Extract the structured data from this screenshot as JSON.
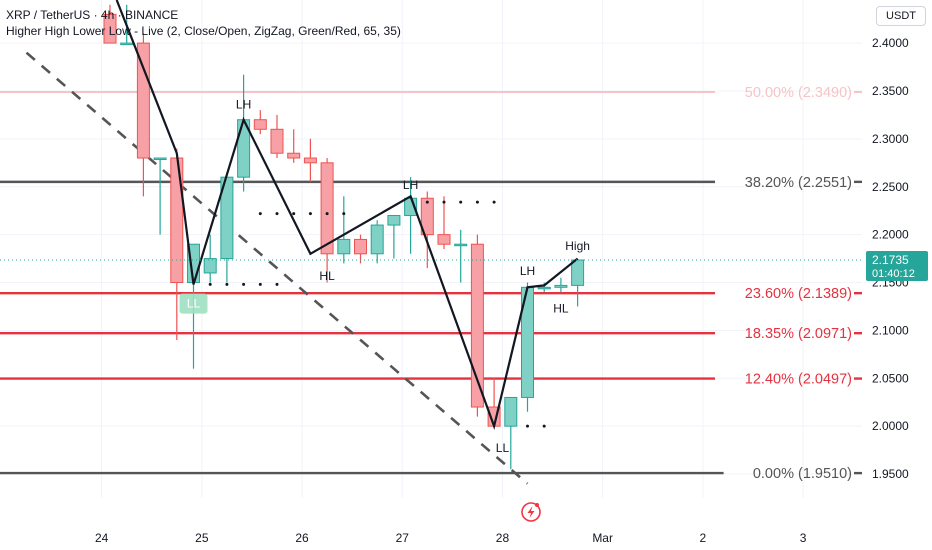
{
  "header": {
    "symbol_line": "XRP / TetherUS · 4h · BINANCE",
    "indicator_line": "Higher High Lower Low - Live (2, Close/Open, ZigZag, Green/Red, 65, 35)"
  },
  "currency": "USDT",
  "price_badge": {
    "price": "2.1735",
    "countdown": "01:40:12"
  },
  "colors": {
    "up": "#26a69a",
    "down": "#ef5350",
    "up_fill": "#7fd1c6",
    "down_fill": "#f7a1a6",
    "fib_red": "#e5323f",
    "fib_gray": "#555555",
    "fib_faded": "#f8c3c6"
  },
  "chart_data": {
    "type": "candlestick",
    "ylim": [
      1.925,
      2.445
    ],
    "y_ticks": [
      "2.4000",
      "2.3500",
      "2.3000",
      "2.2500",
      "2.2000",
      "2.1500",
      "2.1000",
      "2.0500",
      "2.0000",
      "1.9500"
    ],
    "y_tick_values": [
      2.4,
      2.35,
      2.3,
      2.25,
      2.2,
      2.15,
      2.1,
      2.05,
      2.0,
      1.95
    ],
    "x_labels": [
      "24",
      "25",
      "26",
      "27",
      "28",
      "Mar",
      "2",
      "3"
    ],
    "x_label_index": [
      -0.5,
      5.5,
      11.5,
      17.5,
      23.5,
      29.5,
      35.5,
      41.5
    ],
    "candles": [
      {
        "o": 2.43,
        "h": 2.44,
        "l": 2.4,
        "c": 2.4
      },
      {
        "o": 2.4,
        "h": 2.44,
        "l": 2.4,
        "c": 2.4
      },
      {
        "o": 2.4,
        "h": 2.41,
        "l": 2.24,
        "c": 2.28
      },
      {
        "o": 2.28,
        "h": 2.28,
        "l": 2.2,
        "c": 2.28
      },
      {
        "o": 2.28,
        "h": 2.29,
        "l": 2.09,
        "c": 2.15
      },
      {
        "o": 2.15,
        "h": 2.19,
        "l": 2.06,
        "c": 2.19
      },
      {
        "o": 2.16,
        "h": 2.2,
        "l": 2.15,
        "c": 2.175
      },
      {
        "o": 2.175,
        "h": 2.265,
        "l": 2.15,
        "c": 2.26
      },
      {
        "o": 2.26,
        "h": 2.367,
        "l": 2.245,
        "c": 2.32
      },
      {
        "o": 2.32,
        "h": 2.33,
        "l": 2.305,
        "c": 2.31
      },
      {
        "o": 2.31,
        "h": 2.325,
        "l": 2.28,
        "c": 2.285
      },
      {
        "o": 2.285,
        "h": 2.31,
        "l": 2.275,
        "c": 2.28
      },
      {
        "o": 2.28,
        "h": 2.3,
        "l": 2.255,
        "c": 2.275
      },
      {
        "o": 2.275,
        "h": 2.28,
        "l": 2.15,
        "c": 2.18
      },
      {
        "o": 2.18,
        "h": 2.24,
        "l": 2.17,
        "c": 2.195
      },
      {
        "o": 2.195,
        "h": 2.2,
        "l": 2.17,
        "c": 2.18
      },
      {
        "o": 2.18,
        "h": 2.215,
        "l": 2.17,
        "c": 2.21
      },
      {
        "o": 2.21,
        "h": 2.22,
        "l": 2.175,
        "c": 2.22
      },
      {
        "o": 2.22,
        "h": 2.26,
        "l": 2.18,
        "c": 2.238
      },
      {
        "o": 2.238,
        "h": 2.245,
        "l": 2.165,
        "c": 2.2
      },
      {
        "o": 2.2,
        "h": 2.24,
        "l": 2.185,
        "c": 2.19
      },
      {
        "o": 2.19,
        "h": 2.205,
        "l": 2.15,
        "c": 2.19
      },
      {
        "o": 2.19,
        "h": 2.2,
        "l": 2.01,
        "c": 2.02
      },
      {
        "o": 2.02,
        "h": 2.05,
        "l": 2.0,
        "c": 2.0
      },
      {
        "o": 2.0,
        "h": 2.03,
        "l": 1.955,
        "c": 2.03
      },
      {
        "o": 2.03,
        "h": 2.15,
        "l": 2.015,
        "c": 2.145
      },
      {
        "o": 2.145,
        "h": 2.15,
        "l": 2.14,
        "c": 2.145
      },
      {
        "o": 2.145,
        "h": 2.155,
        "l": 2.14,
        "c": 2.147
      },
      {
        "o": 2.147,
        "h": 2.175,
        "l": 2.125,
        "c": 2.1735
      }
    ],
    "fib_levels": [
      {
        "label": "50.00% (2.3490)",
        "value": 2.349,
        "style": "faded"
      },
      {
        "label": "38.20% (2.2551)",
        "value": 2.2551,
        "style": "gray"
      },
      {
        "label": "23.60% (2.1389)",
        "value": 2.1389,
        "style": "red"
      },
      {
        "label": "18.35% (2.0971)",
        "value": 2.0971,
        "style": "red"
      },
      {
        "label": "12.40% (2.0497)",
        "value": 2.0497,
        "style": "red"
      },
      {
        "label": "0.00% (1.9510)",
        "value": 1.951,
        "style": "gray"
      }
    ],
    "zigzag": [
      [
        0.4,
        2.445
      ],
      [
        4,
        2.285
      ],
      [
        5,
        2.148
      ],
      [
        8,
        2.32
      ],
      [
        12,
        2.18
      ],
      [
        18,
        2.24
      ],
      [
        23,
        2.0
      ],
      [
        25,
        2.145
      ],
      [
        26,
        2.147
      ],
      [
        28,
        2.175
      ]
    ],
    "trendline": [
      [
        -5,
        2.39
      ],
      [
        25,
        1.94
      ]
    ],
    "pivot_labels": [
      {
        "text": "LH",
        "i": 8,
        "y": 2.336,
        "box": false
      },
      {
        "text": "LH",
        "i": 18,
        "y": 2.252,
        "box": false
      },
      {
        "text": "HL",
        "i": 13,
        "y": 2.157,
        "box": false
      },
      {
        "text": "LL",
        "i": 5,
        "y": 2.128,
        "box": true
      },
      {
        "text": "LL",
        "i": 23.5,
        "y": 1.977,
        "box": false
      },
      {
        "text": "LH",
        "i": 25,
        "y": 2.162,
        "box": false
      },
      {
        "text": "HL",
        "i": 27,
        "y": 2.123,
        "box": false
      },
      {
        "text": "High",
        "i": 28,
        "y": 2.188,
        "box": false
      }
    ],
    "dotted_levels": [
      {
        "value": 2.222,
        "i_start": 9,
        "count": 6
      },
      {
        "value": 2.234,
        "i_start": 19,
        "count": 5
      },
      {
        "value": 2.148,
        "i_start": 6,
        "count": 5
      },
      {
        "value": 2.0,
        "i_start": 25,
        "count": 2
      }
    ]
  }
}
